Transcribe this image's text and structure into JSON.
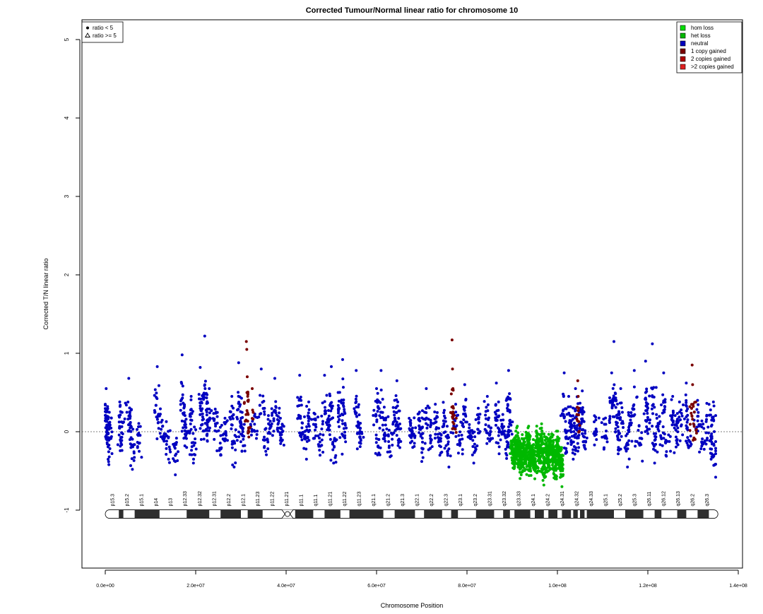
{
  "chart_data": {
    "type": "scatter",
    "title": "Corrected Tumour/Normal linear ratio for chromosome  10",
    "xlabel": "Chromosome Position",
    "ylabel": "Corrected T/N linear ratio",
    "xlim": [
      -5000000,
      140500000
    ],
    "ylim": [
      -1.8,
      5.3
    ],
    "x_ticks": [
      0,
      20000000,
      40000000,
      60000000,
      80000000,
      100000000,
      120000000,
      140000000
    ],
    "x_tick_labels": [
      "0.0e+00",
      "2.0e+07",
      "4.0e+07",
      "6.0e+07",
      "8.0e+07",
      "1.0e+08",
      "1.2e+08",
      "1.4e+08"
    ],
    "y_ticks": [
      -1,
      0,
      1,
      2,
      3,
      4,
      5
    ],
    "y_tick_labels": [
      "-1",
      "0",
      "1",
      "2",
      "3",
      "4",
      "5"
    ],
    "reference_line": {
      "y": 0,
      "style": "dotted"
    },
    "shape_legend": {
      "placement": "top-left",
      "items": [
        {
          "label": "ratio < 5",
          "symbol": "dot"
        },
        {
          "label": "ratio >= 5",
          "symbol": "triangle"
        }
      ]
    },
    "color_legend": {
      "placement": "top-right",
      "items": [
        {
          "label": "hom loss",
          "color": "#00e000"
        },
        {
          "label": "het loss",
          "color": "#00b800"
        },
        {
          "label": "neutral",
          "color": "#0000c0"
        },
        {
          "label": "1 copy gained",
          "color": "#7a0000"
        },
        {
          "label": "2 copies gained",
          "color": "#b00000"
        },
        {
          "label": ">2 copies gained",
          "color": "#e02020"
        }
      ]
    },
    "series": [
      {
        "category": "neutral",
        "color": "#0000c0",
        "points": [
          [
            200000,
            0.55
          ],
          [
            300000,
            0.28
          ],
          [
            500000,
            -0.08
          ],
          [
            800000,
            -0.42
          ],
          [
            1000000,
            0.12
          ],
          [
            3200000,
            0.38
          ],
          [
            3500000,
            -0.15
          ],
          [
            5200000,
            0.68
          ],
          [
            5500000,
            0.05
          ],
          [
            6000000,
            -0.48
          ],
          [
            7500000,
            -0.25
          ],
          [
            11500000,
            0.83
          ],
          [
            12000000,
            0.2
          ],
          [
            13000000,
            -0.12
          ],
          [
            14000000,
            -0.35
          ],
          [
            15500000,
            -0.55
          ],
          [
            17000000,
            0.98
          ],
          [
            17500000,
            0.32
          ],
          [
            18000000,
            -0.2
          ],
          [
            19000000,
            0.45
          ],
          [
            19500000,
            -0.4
          ],
          [
            21000000,
            0.82
          ],
          [
            21500000,
            0.15
          ],
          [
            22000000,
            1.22
          ],
          [
            22500000,
            -0.05
          ],
          [
            23000000,
            0.55
          ],
          [
            24500000,
            0.25
          ],
          [
            25500000,
            -0.3
          ],
          [
            26500000,
            0.1
          ],
          [
            28000000,
            0.45
          ],
          [
            28500000,
            -0.45
          ],
          [
            29500000,
            0.88
          ],
          [
            30000000,
            0.12
          ],
          [
            30500000,
            -0.18
          ],
          [
            33000000,
            0.2
          ],
          [
            34500000,
            0.8
          ],
          [
            35500000,
            -0.25
          ],
          [
            36500000,
            0.05
          ],
          [
            37500000,
            0.68
          ],
          [
            38500000,
            0.3
          ],
          [
            39000000,
            -0.12
          ],
          [
            43000000,
            0.72
          ],
          [
            43500000,
            0.05
          ],
          [
            44500000,
            -0.35
          ],
          [
            45000000,
            0.38
          ],
          [
            46500000,
            0.15
          ],
          [
            47500000,
            -0.3
          ],
          [
            48500000,
            0.72
          ],
          [
            49500000,
            0.2
          ],
          [
            50000000,
            0.83
          ],
          [
            50500000,
            -0.4
          ],
          [
            51500000,
            0.5
          ],
          [
            52500000,
            0.92
          ],
          [
            53000000,
            -0.05
          ],
          [
            55500000,
            0.78
          ],
          [
            56000000,
            0.1
          ],
          [
            56500000,
            -0.15
          ],
          [
            60000000,
            0.55
          ],
          [
            60500000,
            -0.2
          ],
          [
            61000000,
            0.78
          ],
          [
            62000000,
            0.15
          ],
          [
            63000000,
            -0.32
          ],
          [
            64000000,
            0.4
          ],
          [
            64500000,
            0.65
          ],
          [
            65000000,
            -0.1
          ],
          [
            67500000,
            0.1
          ],
          [
            68000000,
            -0.2
          ],
          [
            69500000,
            0.25
          ],
          [
            70000000,
            -0.38
          ],
          [
            71000000,
            0.55
          ],
          [
            72000000,
            -0.12
          ],
          [
            73000000,
            0.35
          ],
          [
            74000000,
            -0.3
          ],
          [
            75000000,
            0.2
          ],
          [
            76000000,
            -0.45
          ],
          [
            77500000,
            0.35
          ],
          [
            78500000,
            -0.15
          ],
          [
            79500000,
            0.6
          ],
          [
            80500000,
            0.05
          ],
          [
            81500000,
            -0.4
          ],
          [
            82500000,
            0.3
          ],
          [
            84500000,
            0.45
          ],
          [
            85000000,
            -0.12
          ],
          [
            86500000,
            0.62
          ],
          [
            87000000,
            -0.05
          ],
          [
            88000000,
            0.15
          ],
          [
            88800000,
            -0.3
          ],
          [
            89200000,
            0.78
          ],
          [
            89500000,
            0.25
          ],
          [
            101500000,
            0.75
          ],
          [
            102000000,
            -0.25
          ],
          [
            102500000,
            0.45
          ],
          [
            103000000,
            0.1
          ],
          [
            103500000,
            -0.35
          ],
          [
            104000000,
            0.55
          ],
          [
            104500000,
            -0.15
          ],
          [
            105000000,
            0.3
          ],
          [
            105500000,
            0.52
          ],
          [
            106000000,
            -0.2
          ],
          [
            108500000,
            0.15
          ],
          [
            110500000,
            -0.08
          ],
          [
            112000000,
            0.75
          ],
          [
            112500000,
            1.15
          ],
          [
            113000000,
            0.4
          ],
          [
            113500000,
            -0.2
          ],
          [
            114000000,
            0.55
          ],
          [
            115500000,
            -0.45
          ],
          [
            116000000,
            0.2
          ],
          [
            117000000,
            0.78
          ],
          [
            118000000,
            -0.15
          ],
          [
            119500000,
            0.9
          ],
          [
            120000000,
            0.3
          ],
          [
            121000000,
            1.12
          ],
          [
            121500000,
            -0.4
          ],
          [
            122500000,
            0.1
          ],
          [
            123500000,
            0.75
          ],
          [
            124000000,
            -0.3
          ],
          [
            125500000,
            0.45
          ],
          [
            126500000,
            -0.1
          ],
          [
            127000000,
            0.38
          ],
          [
            128500000,
            0.62
          ],
          [
            129000000,
            -0.2
          ],
          [
            131000000,
            0.4
          ],
          [
            132000000,
            -0.15
          ],
          [
            133000000,
            0.2
          ],
          [
            134000000,
            -0.35
          ],
          [
            134500000,
            0.38
          ],
          [
            135000000,
            -0.58
          ]
        ]
      },
      {
        "category": "het loss",
        "color": "#00b800",
        "points": [
          [
            90000000,
            -0.2
          ],
          [
            90500000,
            -0.45
          ],
          [
            91000000,
            0.05
          ],
          [
            91500000,
            -0.3
          ],
          [
            92000000,
            -0.55
          ],
          [
            92500000,
            -0.1
          ],
          [
            93000000,
            -0.38
          ],
          [
            93500000,
            0.05
          ],
          [
            94000000,
            -0.5
          ],
          [
            94500000,
            -0.25
          ],
          [
            95000000,
            -0.6
          ],
          [
            95500000,
            -0.05
          ],
          [
            96000000,
            -0.4
          ],
          [
            96500000,
            0.1
          ],
          [
            97000000,
            -0.68
          ],
          [
            97500000,
            -0.2
          ],
          [
            98000000,
            -0.5
          ],
          [
            98500000,
            -0.08
          ],
          [
            99000000,
            -0.35
          ],
          [
            99500000,
            -0.6
          ],
          [
            100000000,
            -0.15
          ],
          [
            100500000,
            -0.45
          ],
          [
            101000000,
            -0.7
          ]
        ]
      },
      {
        "category": "1 copy gained",
        "color": "#7a0000",
        "points": [
          [
            31200000,
            1.15
          ],
          [
            31300000,
            1.05
          ],
          [
            31400000,
            0.7
          ],
          [
            31500000,
            0.45
          ],
          [
            31600000,
            0.22
          ],
          [
            31700000,
            0.05
          ],
          [
            32500000,
            0.55
          ],
          [
            76700000,
            1.17
          ],
          [
            76800000,
            0.8
          ],
          [
            76900000,
            0.55
          ],
          [
            77000000,
            0.3
          ],
          [
            77100000,
            0.1
          ],
          [
            104500000,
            0.65
          ],
          [
            104600000,
            0.45
          ],
          [
            104700000,
            0.3
          ],
          [
            129800000,
            0.85
          ],
          [
            129900000,
            0.6
          ],
          [
            130000000,
            0.35
          ],
          [
            130100000,
            0.1
          ],
          [
            130200000,
            -0.08
          ]
        ]
      }
    ],
    "ideogram": {
      "y": -1.05,
      "centromere_at": 40300000,
      "bands": [
        "p15.3",
        "p15.2",
        "p15.1",
        "p14",
        "p13",
        "p12.33",
        "p12.32",
        "p12.31",
        "p12.2",
        "p12.1",
        "p11.23",
        "p11.22",
        "p11.21",
        "p11.1",
        "q11.1",
        "q11.21",
        "q11.22",
        "q11.23",
        "q21.1",
        "q21.2",
        "q21.3",
        "q22.1",
        "q22.2",
        "q22.3",
        "q23.1",
        "q23.2",
        "q23.31",
        "q23.32",
        "q23.33",
        "q24.1",
        "q24.2",
        "q24.31",
        "q24.32",
        "q24.33",
        "q25.1",
        "q25.2",
        "q25.3",
        "q26.11",
        "q26.12",
        "q26.13",
        "q26.2",
        "q26.3"
      ]
    }
  }
}
